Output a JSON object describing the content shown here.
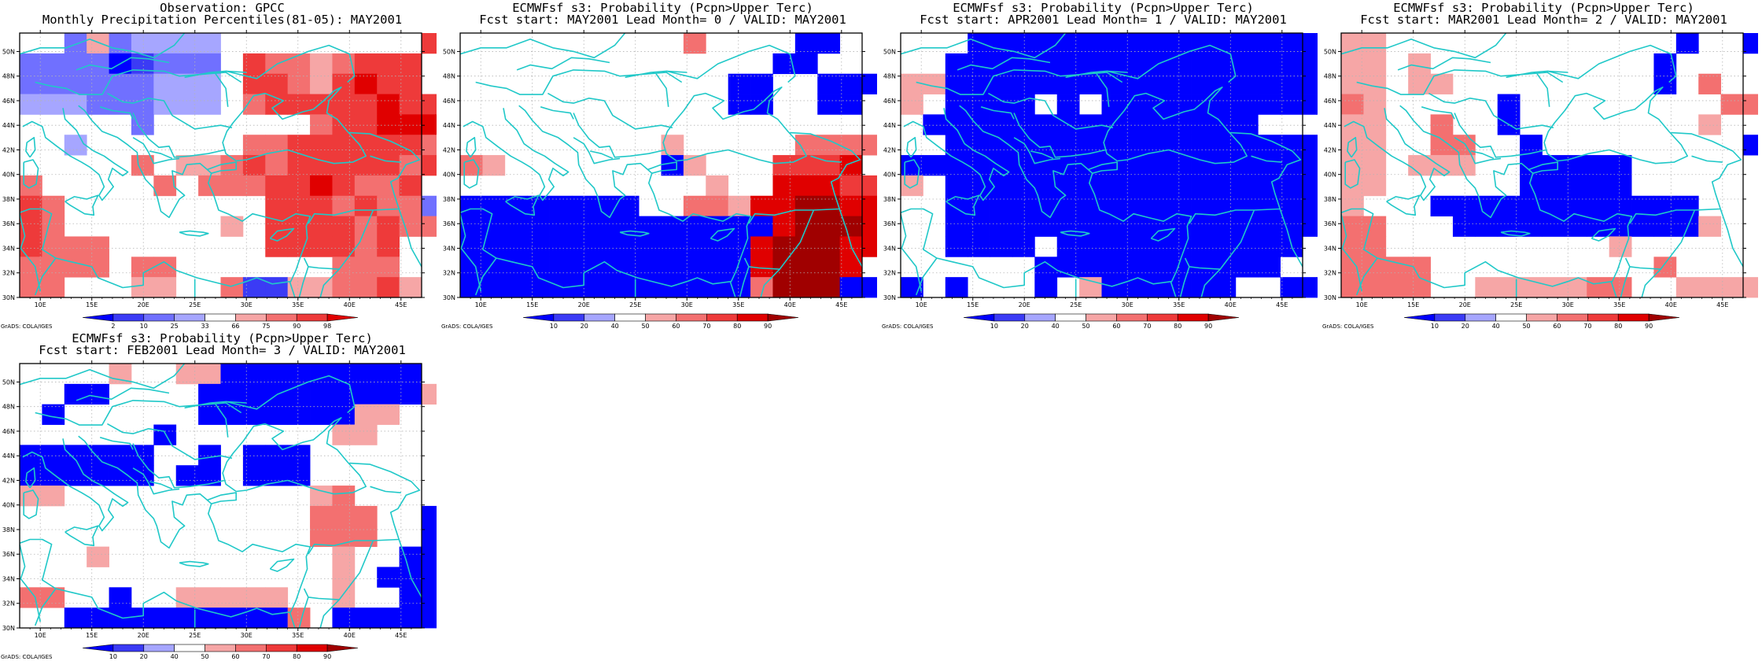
{
  "credit": "GrADS: COLA/IGES",
  "axes": {
    "lon_labels": [
      "10E",
      "15E",
      "20E",
      "25E",
      "30E",
      "35E",
      "40E",
      "45E"
    ],
    "lat_labels": [
      "30N",
      "32N",
      "34N",
      "36N",
      "38N",
      "40N",
      "42N",
      "44N",
      "46N",
      "48N",
      "50N"
    ],
    "lon_range": [
      8,
      47
    ],
    "lat_range": [
      30,
      51.5
    ]
  },
  "palette": {
    "coastline": "#20c8c8",
    "grid": "#b4b4b4",
    "cells": {
      "B3": "#0000ff",
      "B2": "#3b3bf5",
      "B1": "#7070ff",
      "B0": "#a6a6ff",
      "R0": "#f6a6a6",
      "R1": "#f37070",
      "R2": "#ee3a3a",
      "R3": "#e00000",
      "R4": "#a00000"
    }
  },
  "panels": [
    {
      "title_lines": [
        "Observation: GPCC",
        "Monthly Precipitation Percentiles(81-05): MAY2001"
      ],
      "colorbar": {
        "labels": [
          "2",
          "10",
          "25",
          "33",
          "66",
          "75",
          "90",
          "98"
        ],
        "colors": [
          "#0000ff",
          "#3b3bf5",
          "#7070ff",
          "#a6a6ff",
          "#ffffff",
          "#f6a6a6",
          "#f37070",
          "#ee3a3a",
          "#e00000"
        ]
      },
      "grid_rows": [
        "..B1R0B1B0B0B0B0.........R2R2R2",
        "B1B1B1B1B3B2B1B1B1.R2R1R1R0R1R2R2R2",
        "B1B1B1B1B1B1B0B0B0.R2R2R1R0R2R3R2R2",
        "B0B0B0B1B1B1B0B0B0.R1R2R2R2R2R2R3R2R2",
        ".....B1.......R1R2R2R3R3R3R2R2R2",
        "..B0.......R1R1R2R2R2R2R2R2R1",
        ".....R1.R0R0R1R2R1R2R2R2R2R2R1R2",
        "R1.....R1.R1R1R1R2R2R3R2R1R1R2",
        "R2R1.........R2R2R2R1R2R1R1B1",
        "R2R1.......R0.R2R2R2R2R1R2R1R1R0",
        "R2R1R1R1.......R2R2R2R2R1R2...",
        "R1R1R1R1.R1R1.......R1R1R1...",
        "R1R1...R0R0..R1B2B2R0R0R1R1R2R0..."
      ]
    },
    {
      "title_lines": [
        "ECMWFsf s3: Probability (Pcpn>Upper Terc)",
        "Fcst start: MAY2001   Lead Month= 0 / VALID: MAY2001"
      ],
      "colorbar": {
        "labels": [
          "10",
          "20",
          "40",
          "50",
          "60",
          "70",
          "80",
          "90"
        ],
        "colors": [
          "#0000ff",
          "#3b3bf5",
          "#a6a6ff",
          "#ffffff",
          "#f6a6a6",
          "#f37070",
          "#ee3a3a",
          "#e00000",
          "#a00000"
        ]
      },
      "grid_rows": [
        "..........R1....B3B3...",
        "..............B3B3...B3B3",
        "............B3B3..B3B3B3B3B3",
        "............B3B3..B3B3...",
        "........................",
        ".........R0.....R1R1R1R1",
        "R1R0.......B3R0...R2R2R2R3",
        "...........R0..R3R3R3R2R2R2",
        "B3B3B3B3B3B3B3B3..R1R1R0R3R3R4R4R3R3",
        "B3B3B3B3B3B3B3B3B3B3B3B3B3B3R3R4R4R4R3R3",
        "B3B3B3B3B3B3B3B3B3B3B3B3B3R3R4R4R4R3R3",
        "B3B3B3B3B3B3B3B3B3B3B3B3B3R3R4R4R4R3..",
        "B3B3B3B3B3B3B3B3B3B3B3B3B3R1R4R4R4B3B3B3B3"
      ]
    },
    {
      "title_lines": [
        "ECMWFsf s3: Probability (Pcpn>Upper Terc)",
        "Fcst start: APR2001   Lead Month= 1 / VALID: MAY2001"
      ],
      "colorbar": {
        "labels": [
          "10",
          "20",
          "40",
          "50",
          "60",
          "70",
          "80",
          "90"
        ],
        "colors": [
          "#0000ff",
          "#3b3bf5",
          "#a6a6ff",
          "#ffffff",
          "#f6a6a6",
          "#f37070",
          "#ee3a3a",
          "#e00000",
          "#a00000"
        ]
      },
      "grid_rows": [
        "...B3B3B3B3B3B3B3B3B3B3B3B3B3B3B3B3",
        "..B3B3B3B3B3B3B3B3B3B3B3B3B3B3B3B3B3",
        "R0R0B3B3B3B3B3B3B3B3B3B3B3B3B3B3B3B3B3",
        "R0.B3B3B3B3.B3.B3B3B3B3B3B3B3B3B3B3",
        ".B3B3B3B3B3B3B3B3B3B3B3B3B3B3B3....",
        "..B3B3B3B3B3B3B3B3B3B3B3B3B3B3B3B3B3B3",
        "B3B3B3B3B3B3B3B3B3B3B3B3B3B3B3B3B3B3B3B3",
        "R0.B3B3B3B3B3B3B3B3B3B3B3B3B3B3B3B3B3B3",
        "..B3B3B3B3B3B3B3B3B3B3B3B3B3B3B3B3B3B3",
        "..B3B3B3B3B3B3B3B3B3B3B3B3B3B3B3B3B3B3",
        "..B3B3B3B3.B3B3B3B3B3B3B3B3B3B3B3..B3",
        "......B3B3B3B3B3B3B3B3B3B3B3...",
        "B3.B3...B3.R0B3B3B3B3B3B3..B3B3B3B3"
      ]
    },
    {
      "title_lines": [
        "ECMWFsf s3: Probability (Pcpn>Upper Terc)",
        "Fcst start: MAR2001   Lead Month= 2 / VALID: MAY2001"
      ],
      "colorbar": {
        "labels": [
          "10",
          "20",
          "40",
          "50",
          "60",
          "70",
          "80",
          "90"
        ],
        "colors": [
          "#0000ff",
          "#3b3bf5",
          "#a6a6ff",
          "#ffffff",
          "#f6a6a6",
          "#f37070",
          "#ee3a3a",
          "#e00000",
          "#a00000"
        ]
      },
      "grid_rows": [
        "R0R0.............B3..B3..",
        "R0R0.R0..........B3....",
        "R0R0.R0R0.........B3.R1..",
        "R1R0.....B3.........R1R1R1",
        "R0R0..R1..B3........R0....",
        "R0R0..R1R1..B3.........B3",
        "R0R0.R0R0R0..B3B3B3B3B3.......",
        "R0R0......B3B3B3B3B3.......",
        "R0...B3B3B3B3B3B3B3B3B3B3B3B3...B3B3",
        "R1R1...B3B3B3B3B3B3B3B3B3B3B3R0..B3B3",
        "R1R1..........R0.......",
        "R1R1R1R1..........R1....",
        "R1R1R1R1..R0R0R0R0R0R1R1..R0R0R0R0.B3B3"
      ]
    },
    {
      "title_lines": [
        "ECMWFsf s3: Probability (Pcpn>Upper Terc)",
        "Fcst start: FEB2001   Lead Month= 3 / VALID: MAY2001"
      ],
      "colorbar": {
        "labels": [
          "10",
          "20",
          "40",
          "50",
          "60",
          "70",
          "80",
          "90"
        ],
        "colors": [
          "#0000ff",
          "#3b3bf5",
          "#a6a6ff",
          "#ffffff",
          "#f6a6a6",
          "#f37070",
          "#ee3a3a",
          "#e00000",
          "#a00000"
        ]
      },
      "grid_rows": [
        "....R0..R0R0B3B3B3B3B3B3B3B3B3....",
        "..B3B3....B3B3B3B3B3B3B3B3B3B3R0.B3",
        ".B3......B3B3B3B3B3B3B3R0R0...",
        "......B3.......R0R0....",
        "B3B3B3B3B3B3..B3.B3B3B3.......",
        "B3B3B3B3B3B3.B3B3.B3B3B3.......",
        "R0R0...........R0R1....",
        ".............R1R1R1..B3B3",
        ".............R1R1R1..B3B3",
        "...R0..........R0..B3B3B3B3",
        "..............R0.B3B3B3B3",
        "R1R1..B3..R0R0R0R0R0..R0..B3B3B3B3",
        "..B3B3B3B3B3B3B3B3B3B3R1.B3B3B3B3B3B3B3B3"
      ]
    }
  ]
}
